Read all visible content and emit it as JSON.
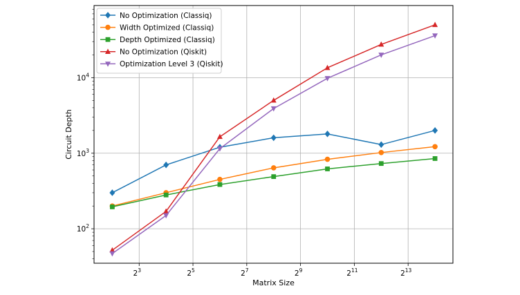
{
  "chart_data": {
    "type": "line",
    "title": "",
    "xlabel": "Matrix Size",
    "ylabel": "Circuit Depth",
    "x_scale": "log2",
    "y_scale": "log10",
    "x": [
      4,
      16,
      64,
      256,
      1024,
      4096,
      16384
    ],
    "xlim": [
      2.5,
      26000
    ],
    "ylim": [
      35,
      90000
    ],
    "x_ticks": [
      {
        "value": 8,
        "base": "2",
        "exp": "3"
      },
      {
        "value": 32,
        "base": "2",
        "exp": "5"
      },
      {
        "value": 128,
        "base": "2",
        "exp": "7"
      },
      {
        "value": 512,
        "base": "2",
        "exp": "9"
      },
      {
        "value": 2048,
        "base": "2",
        "exp": "11"
      },
      {
        "value": 8192,
        "base": "2",
        "exp": "13"
      }
    ],
    "y_ticks": [
      {
        "value": 100,
        "base": "10",
        "exp": "2"
      },
      {
        "value": 1000,
        "base": "10",
        "exp": "3"
      },
      {
        "value": 10000,
        "base": "10",
        "exp": "4"
      }
    ],
    "grid": true,
    "legend_position": "top-left",
    "series": [
      {
        "name": "No Optimization (Classiq)",
        "color": "#1f77b4",
        "marker": "diamond",
        "values": [
          300,
          700,
          1200,
          1600,
          1800,
          1300,
          2000
        ]
      },
      {
        "name": "Width Optimized (Classiq)",
        "color": "#ff7f0e",
        "marker": "circle",
        "values": [
          200,
          300,
          450,
          640,
          830,
          1020,
          1220
        ]
      },
      {
        "name": "Depth Optimized (Classiq)",
        "color": "#2ca02c",
        "marker": "square",
        "values": [
          195,
          280,
          385,
          490,
          620,
          730,
          850
        ]
      },
      {
        "name": "No Optimization (Qiskit)",
        "color": "#d62728",
        "marker": "triangle-up",
        "values": [
          52,
          170,
          1650,
          5000,
          13500,
          27500,
          50000
        ]
      },
      {
        "name": "Optimization Level 3 (Qiskit)",
        "color": "#9467bd",
        "marker": "triangle-down",
        "values": [
          47,
          150,
          1150,
          3900,
          9800,
          20000,
          36000
        ]
      }
    ]
  }
}
